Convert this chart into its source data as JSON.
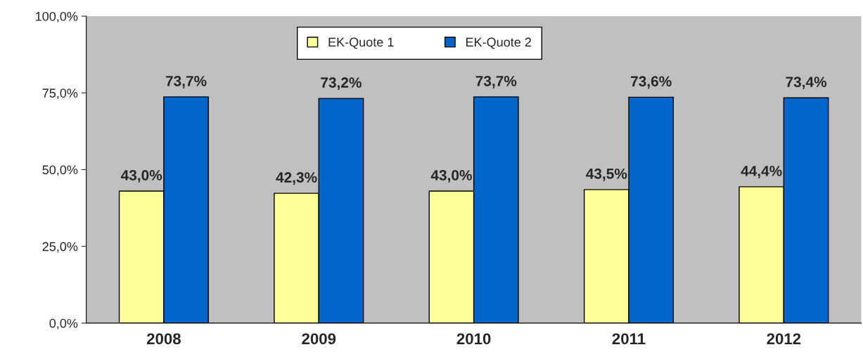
{
  "chart_data": {
    "type": "bar",
    "categories": [
      "2008",
      "2009",
      "2010",
      "2011",
      "2012"
    ],
    "series": [
      {
        "name": "EK-Quote 1",
        "color": "#ffff99",
        "values": [
          43.0,
          42.3,
          43.0,
          43.5,
          44.4
        ],
        "value_labels": [
          "43,0%",
          "42,3%",
          "43,0%",
          "43,5%",
          "44,4%"
        ]
      },
      {
        "name": "EK-Quote 2",
        "color": "#0066cc",
        "values": [
          73.7,
          73.2,
          73.7,
          73.6,
          73.4
        ],
        "value_labels": [
          "73,7%",
          "73,2%",
          "73,7%",
          "73,6%",
          "73,4%"
        ]
      }
    ],
    "ylim": [
      0,
      100
    ],
    "yticks": [
      {
        "value": 0,
        "label": "0,0%"
      },
      {
        "value": 25,
        "label": "25,0%"
      },
      {
        "value": 50,
        "label": "50,0%"
      },
      {
        "value": 75,
        "label": "75,0%"
      },
      {
        "value": 100,
        "label": "100,0%"
      }
    ],
    "grid": false,
    "legend": "top"
  }
}
